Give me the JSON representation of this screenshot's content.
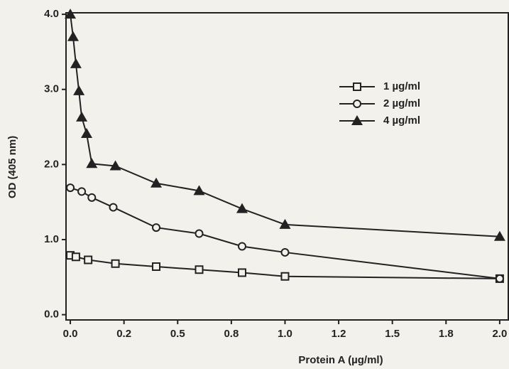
{
  "chart_data": {
    "type": "line",
    "x_label": "Protein A (µg/ml)",
    "y_label": "OD (405 nm)",
    "xlim": [
      -0.02,
      2.04
    ],
    "ylim": [
      -0.07,
      4.02
    ],
    "xticks": [
      {
        "value": 0,
        "label": "0.0"
      },
      {
        "value": 0.25,
        "label": "0.2"
      },
      {
        "value": 0.5,
        "label": "0.5"
      },
      {
        "value": 0.75,
        "label": "0.8"
      },
      {
        "value": 1,
        "label": "1.0"
      },
      {
        "value": 1.25,
        "label": "1.2"
      },
      {
        "value": 1.5,
        "label": "1.5"
      },
      {
        "value": 1.75,
        "label": "1.8"
      },
      {
        "value": 2,
        "label": "2.0"
      }
    ],
    "yticks": [
      {
        "value": 0,
        "label": "0.0"
      },
      {
        "value": 1,
        "label": "1.0"
      },
      {
        "value": 2,
        "label": "2.0"
      },
      {
        "value": 3,
        "label": "3.0"
      },
      {
        "value": 4,
        "label": "4.0"
      }
    ],
    "series": [
      {
        "name": "1 µg/ml",
        "color": "#222222",
        "marker": "square",
        "x": [
          0,
          0.026,
          0.083,
          0.21,
          0.4,
          0.6,
          0.8,
          1.0,
          2.0
        ],
        "values": [
          0.79,
          0.77,
          0.73,
          0.68,
          0.64,
          0.6,
          0.56,
          0.51,
          0.48
        ]
      },
      {
        "name": "2 µg/ml",
        "color": "#222222",
        "marker": "circle",
        "x": [
          0,
          0.053,
          0.1,
          0.2,
          0.4,
          0.6,
          0.8,
          1.0,
          2.0
        ],
        "values": [
          1.69,
          1.64,
          1.56,
          1.43,
          1.16,
          1.08,
          0.91,
          0.83,
          0.48
        ]
      },
      {
        "name": "4 µg/ml",
        "color": "#222222",
        "marker": "triangle",
        "x": [
          0,
          0.013,
          0.026,
          0.04,
          0.053,
          0.076,
          0.1,
          0.21,
          0.4,
          0.6,
          0.8,
          1.0,
          2.0
        ],
        "values": [
          4.0,
          3.7,
          3.34,
          2.98,
          2.63,
          2.41,
          2.01,
          1.98,
          1.75,
          1.65,
          1.41,
          1.2,
          1.04
        ]
      }
    ]
  }
}
